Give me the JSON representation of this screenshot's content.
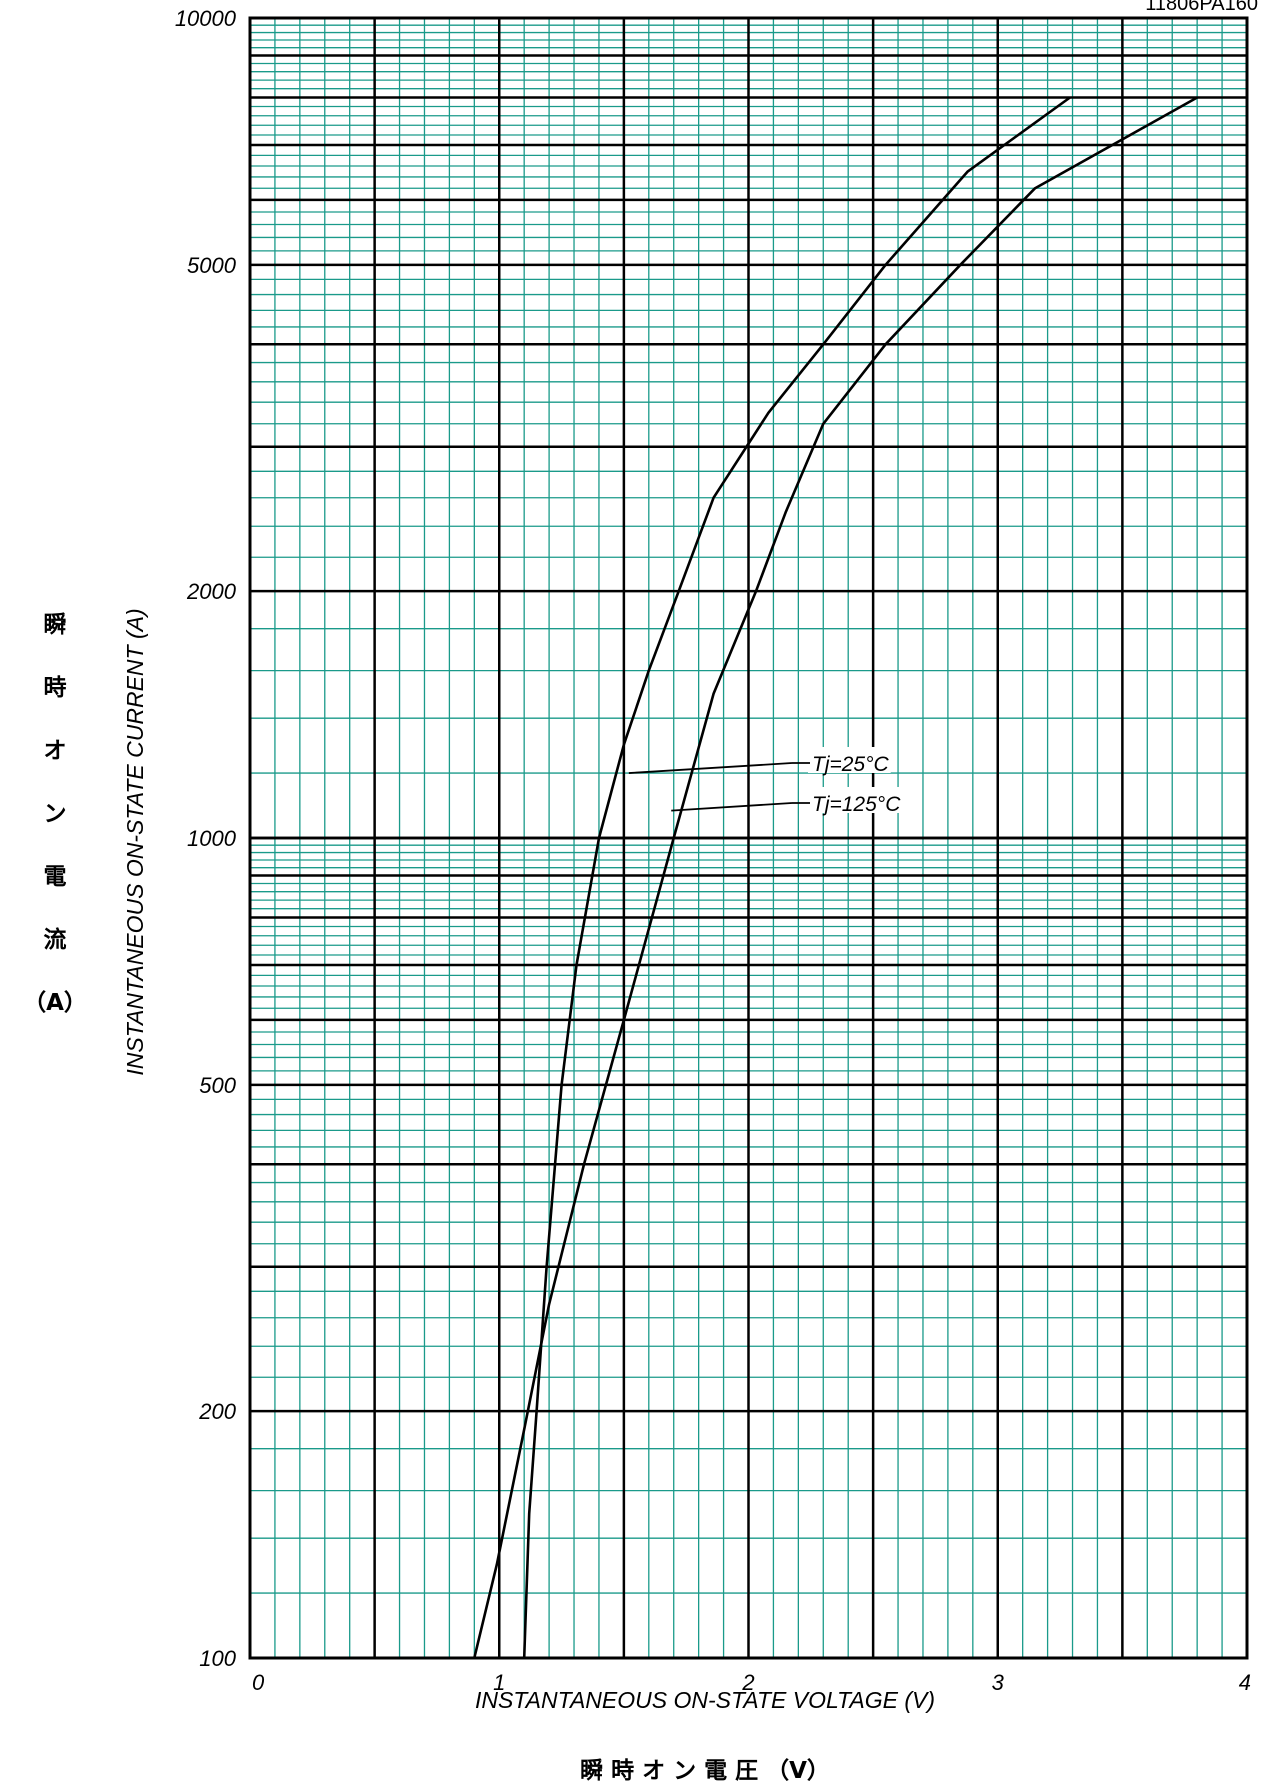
{
  "chart_data": {
    "type": "line",
    "figure_code": "11806PA160",
    "xlabel": "INSTANTANEOUS ON-STATE VOLTAGE (V)",
    "xlabel_jp": "瞬 時 オ ン 電 圧 （V）",
    "ylabel": "INSTANTANEOUS ON-STATE CURRENT (A)",
    "ylabel_jp_chars": [
      "瞬",
      "時",
      "オ",
      "ン",
      "電",
      "流",
      "（A）"
    ],
    "xlim": [
      0,
      4
    ],
    "ylim": [
      100,
      10000
    ],
    "y_scale": "log",
    "grid": true,
    "grid_color": "#1a9a8a",
    "x_ticks": [
      "0",
      "1",
      "2",
      "3",
      "4"
    ],
    "y_ticks": [
      {
        "value": 100,
        "label": "100"
      },
      {
        "value": 200,
        "label": "200"
      },
      {
        "value": 500,
        "label": "500"
      },
      {
        "value": 1000,
        "label": "1000"
      },
      {
        "value": 2000,
        "label": "2000"
      },
      {
        "value": 5000,
        "label": "5000"
      },
      {
        "value": 10000,
        "label": "10000"
      }
    ],
    "series": [
      {
        "name": "Tj=25°C",
        "x": [
          1.1,
          1.12,
          1.15,
          1.19,
          1.25,
          1.31,
          1.4,
          1.5,
          1.6,
          1.72,
          1.86,
          2.08,
          2.3,
          2.55,
          2.88,
          3.29
        ],
        "y": [
          100,
          150,
          200,
          300,
          500,
          700,
          1000,
          1300,
          1600,
          2000,
          2600,
          3300,
          4000,
          5000,
          6500,
          8000
        ]
      },
      {
        "name": "Tj=125°C",
        "x": [
          0.9,
          0.99,
          1.1,
          1.2,
          1.34,
          1.5,
          1.7,
          1.86,
          2.03,
          2.15,
          2.3,
          2.55,
          2.85,
          3.15,
          3.8
        ],
        "y": [
          100,
          130,
          190,
          270,
          400,
          600,
          1000,
          1500,
          2000,
          2500,
          3200,
          4000,
          5000,
          6200,
          8000
        ]
      }
    ],
    "annotations": [
      {
        "text": "Tj=25°C",
        "series": 0,
        "point_x": 1.52,
        "point_y": 1200
      },
      {
        "text": "Tj=125°C",
        "series": 1,
        "point_x": 1.69,
        "point_y": 1080
      }
    ]
  }
}
